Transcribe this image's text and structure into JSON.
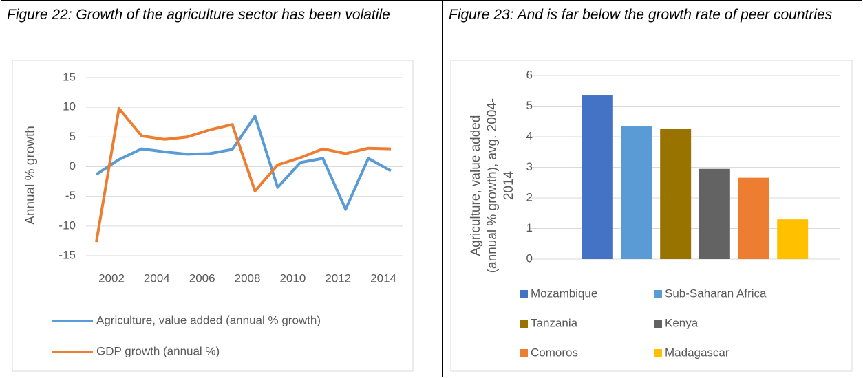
{
  "chart_data": [
    {
      "type": "line",
      "title": "Figure 22: Growth of the agriculture sector has been volatile",
      "ylabel": "Annual % growth",
      "x": [
        2002,
        2003,
        2004,
        2005,
        2006,
        2007,
        2008,
        2009,
        2010,
        2011,
        2012,
        2013,
        2014,
        2015
      ],
      "xlim": [
        2002,
        2015
      ],
      "xticks": [
        2002,
        2004,
        2006,
        2008,
        2010,
        2012,
        2014
      ],
      "ylim": [
        -15,
        15
      ],
      "yticks": [
        -15,
        -10,
        -5,
        0,
        5,
        10,
        15
      ],
      "grid": true,
      "legend": "bottom",
      "series": [
        {
          "name": "Agriculture, value added (annual % growth)",
          "color": "#5b9bd5",
          "values": [
            -1.3,
            1.2,
            3.0,
            2.5,
            2.1,
            2.2,
            2.9,
            8.5,
            -3.5,
            0.7,
            1.4,
            -7.2,
            1.4,
            -0.7
          ]
        },
        {
          "name": "GDP growth (annual %)",
          "color": "#ed7d31",
          "values": [
            -12.7,
            9.8,
            5.2,
            4.6,
            5.0,
            6.2,
            7.1,
            -4.1,
            0.3,
            1.5,
            3.0,
            2.2,
            3.1,
            3.0
          ]
        }
      ]
    },
    {
      "type": "bar",
      "title": "Figure 23: And is far below the growth rate of peer countries",
      "ylabel": "Agriculture, value added (annual % growth), avg. 2004-2014",
      "categories": [
        "Mozambique",
        "Sub-Saharan Africa",
        "Tanzania",
        "Kenya",
        "Comoros",
        "Madagascar"
      ],
      "values": [
        5.37,
        4.35,
        4.27,
        2.95,
        2.66,
        1.3
      ],
      "colors": [
        "#4472c4",
        "#5b9bd5",
        "#997300",
        "#636363",
        "#ed7d31",
        "#ffc000"
      ],
      "ylim": [
        0,
        6
      ],
      "yticks": [
        0,
        1,
        2,
        3,
        4,
        5,
        6
      ],
      "grid": true,
      "legend": "bottom"
    }
  ]
}
